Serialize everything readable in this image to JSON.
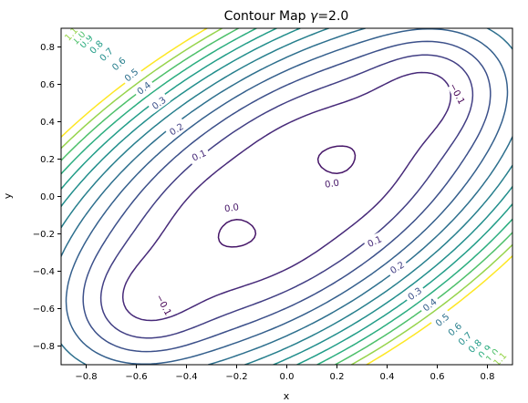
{
  "chart_data": {
    "type": "contour",
    "title_prefix": "Contour Map ",
    "title_symbol": "γ",
    "title_suffix": "=2.0",
    "xlabel": "x",
    "ylabel": "y",
    "xlim": [
      -0.9,
      0.9
    ],
    "ylim": [
      -0.9,
      0.9
    ],
    "xticks": [
      -0.8,
      -0.6,
      -0.4,
      -0.2,
      0.0,
      0.2,
      0.4,
      0.6,
      0.8
    ],
    "xtick_labels": [
      "−0.8",
      "−0.6",
      "−0.4",
      "−0.2",
      "0.0",
      "0.2",
      "0.4",
      "0.6",
      "0.8"
    ],
    "yticks": [
      -0.8,
      -0.6,
      -0.4,
      -0.2,
      0.0,
      0.2,
      0.4,
      0.6,
      0.8
    ],
    "ytick_labels": [
      "−0.8",
      "−0.6",
      "−0.4",
      "−0.2",
      "0.0",
      "0.2",
      "0.4",
      "0.6",
      "0.8"
    ],
    "colormap": "viridis",
    "levels": [
      -0.1,
      0.0,
      0.1,
      0.2,
      0.3,
      0.4,
      0.5,
      0.6,
      0.7,
      0.8,
      0.9,
      1.0,
      1.1,
      1.2
    ],
    "contour_labels": [
      {
        "text": "−0.1",
        "level": -0.1,
        "x": 0.68,
        "y": 0.55,
        "rot": 62
      },
      {
        "text": "−0.1",
        "level": -0.1,
        "x": -0.49,
        "y": -0.58,
        "rot": 62
      },
      {
        "text": "0.0",
        "level": 0.0,
        "x": 0.18,
        "y": 0.07,
        "rot": -8
      },
      {
        "text": "0.0",
        "level": 0.0,
        "x": -0.22,
        "y": -0.06,
        "rot": -8
      },
      {
        "text": "0.1",
        "level": 0.1,
        "x": -0.35,
        "y": 0.22,
        "rot": -25
      },
      {
        "text": "0.1",
        "level": 0.1,
        "x": 0.35,
        "y": -0.24,
        "rot": -25
      },
      {
        "text": "0.2",
        "level": 0.2,
        "x": -0.44,
        "y": 0.36,
        "rot": -32
      },
      {
        "text": "0.2",
        "level": 0.2,
        "x": 0.44,
        "y": -0.38,
        "rot": -32
      },
      {
        "text": "0.3",
        "level": 0.3,
        "x": -0.51,
        "y": 0.5,
        "rot": -36
      },
      {
        "text": "0.3",
        "level": 0.3,
        "x": 0.51,
        "y": -0.52,
        "rot": -36
      },
      {
        "text": "0.4",
        "level": 0.4,
        "x": -0.57,
        "y": 0.58,
        "rot": -38
      },
      {
        "text": "0.4",
        "level": 0.4,
        "x": 0.57,
        "y": -0.58,
        "rot": -38
      },
      {
        "text": "0.5",
        "level": 0.5,
        "x": -0.62,
        "y": 0.65,
        "rot": -40
      },
      {
        "text": "0.5",
        "level": 0.5,
        "x": 0.62,
        "y": -0.66,
        "rot": -40
      },
      {
        "text": "0.6",
        "level": 0.6,
        "x": -0.67,
        "y": 0.71,
        "rot": -42
      },
      {
        "text": "0.6",
        "level": 0.6,
        "x": 0.67,
        "y": -0.71,
        "rot": -42
      },
      {
        "text": "0.7",
        "level": 0.7,
        "x": -0.72,
        "y": 0.76,
        "rot": -44
      },
      {
        "text": "0.7",
        "level": 0.7,
        "x": 0.71,
        "y": -0.76,
        "rot": -44
      },
      {
        "text": "0.8",
        "level": 0.8,
        "x": -0.76,
        "y": 0.8,
        "rot": -45
      },
      {
        "text": "0.8",
        "level": 0.8,
        "x": 0.75,
        "y": -0.8,
        "rot": -45
      },
      {
        "text": "0.9",
        "level": 0.9,
        "x": -0.8,
        "y": 0.83,
        "rot": -46
      },
      {
        "text": "0.9",
        "level": 0.9,
        "x": 0.79,
        "y": -0.83,
        "rot": -46
      },
      {
        "text": "1.0",
        "level": 1.0,
        "x": -0.83,
        "y": 0.85,
        "rot": -47
      },
      {
        "text": "1.0",
        "level": 1.0,
        "x": 0.82,
        "y": -0.85,
        "rot": -47
      },
      {
        "text": "1.1",
        "level": 1.1,
        "x": -0.86,
        "y": 0.87,
        "rot": -48
      },
      {
        "text": "1.1",
        "level": 1.1,
        "x": 0.85,
        "y": -0.87,
        "rot": -48
      }
    ],
    "grid": false
  }
}
